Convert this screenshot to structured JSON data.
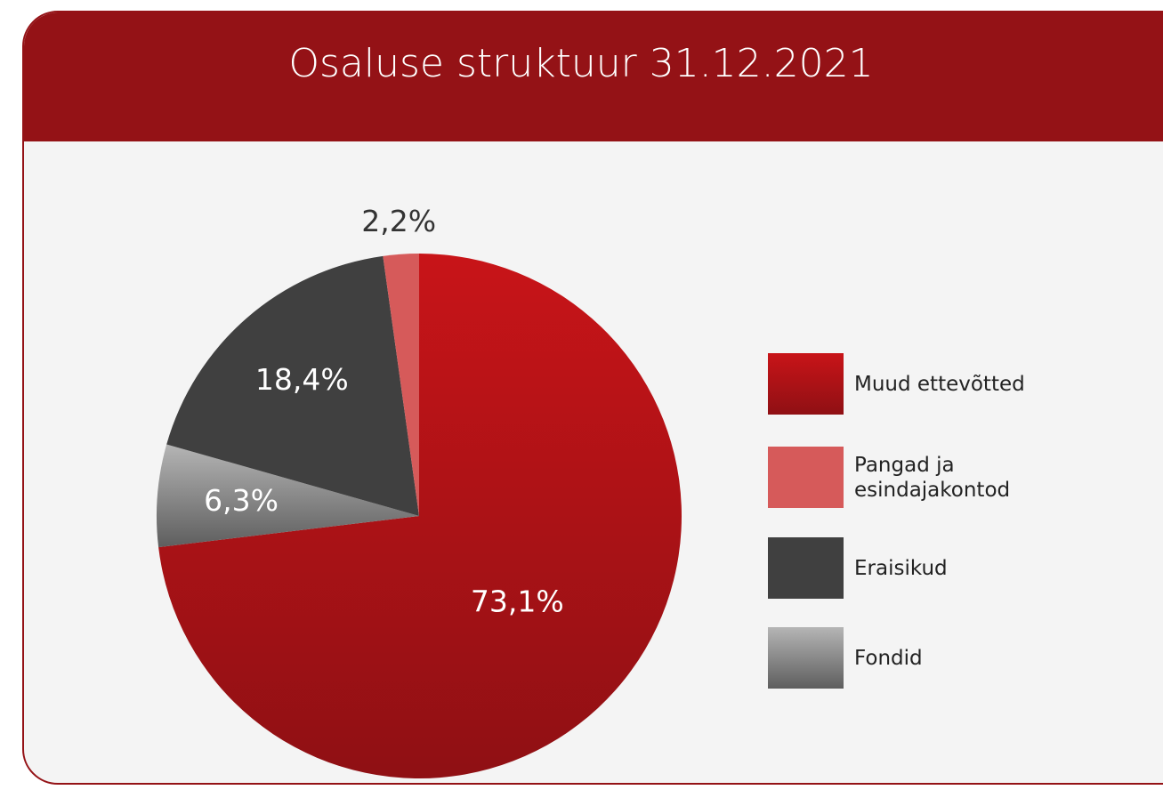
{
  "chart_data": {
    "type": "pie",
    "title": "Osaluse struktuur 31.12.2021",
    "series": [
      {
        "name": "Muud ettevõtted",
        "color": "#b21216",
        "values": [
          73.1
        ],
        "value_labels": [
          "73,1%"
        ]
      },
      {
        "name": "Pangad ja esindajakontod",
        "color": "#d65a5a",
        "values": [
          2.2
        ],
        "value_labels": [
          "2,2%"
        ]
      },
      {
        "name": "Eraisikud",
        "color": "#404040",
        "values": [
          18.4
        ],
        "value_labels": [
          "18,4%"
        ]
      },
      {
        "name": "Fondid",
        "color": "#8a8a8a",
        "values": [
          6.3
        ],
        "value_labels": [
          "6,3%"
        ]
      }
    ],
    "legend": "right"
  }
}
